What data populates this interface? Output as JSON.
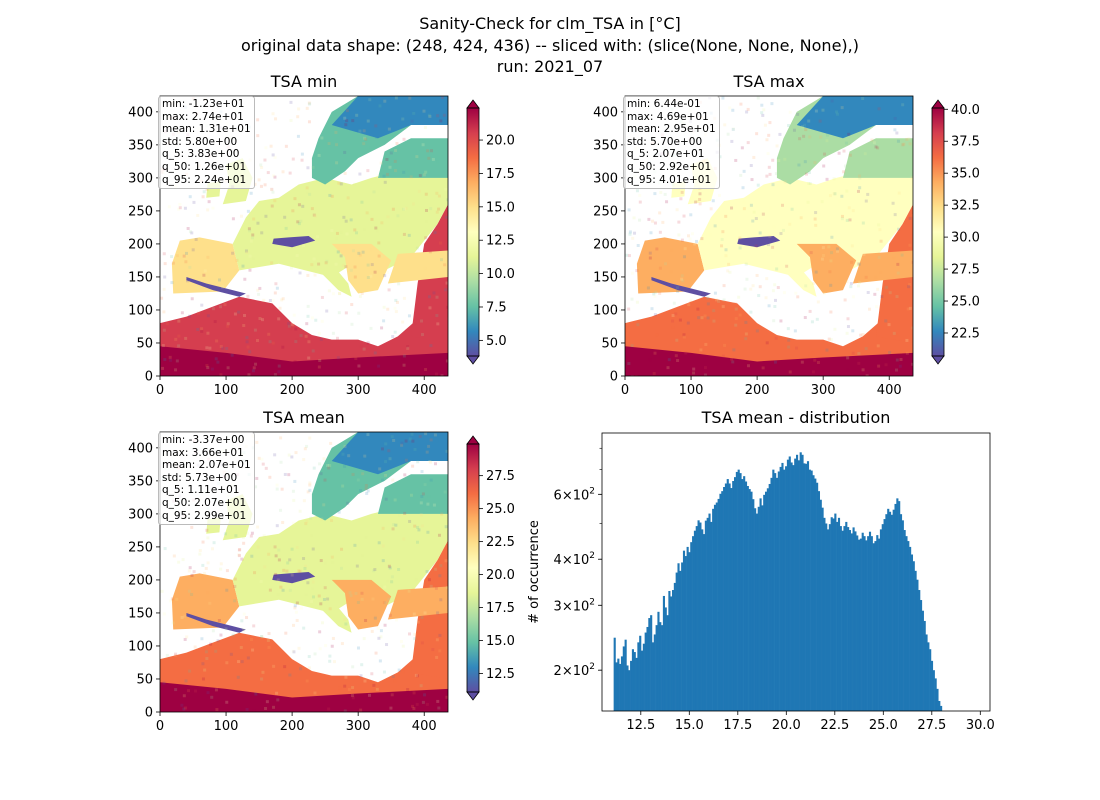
{
  "figure": {
    "title_lines": [
      "Sanity-Check for clm_TSA in [°C]",
      "original data shape: (248, 424, 436) -- sliced with: (slice(None, None, None),)",
      "run: 2021_07"
    ]
  },
  "colors": {
    "colormap": "Spectral_r",
    "bar_color": "#1f77b4",
    "stat_box_border": "#bbbbbb"
  },
  "chart_data": [
    {
      "type": "heatmap",
      "title": "TSA min",
      "x_ticks": [
        0,
        100,
        200,
        300,
        400
      ],
      "y_ticks": [
        0,
        50,
        100,
        150,
        200,
        250,
        300,
        350,
        400
      ],
      "xlim": [
        0,
        436
      ],
      "ylim": [
        0,
        424
      ],
      "colorbar": {
        "range": [
          3.83,
          22.4
        ],
        "ticks": [
          "5.0",
          "7.5",
          "10.0",
          "12.5",
          "15.0",
          "17.5",
          "20.0"
        ],
        "extend": "both"
      },
      "stats": [
        "min: -1.23e+01",
        "max: 2.74e+01",
        "mean: 1.31e+01",
        "std: 5.80e+00",
        "q_5: 3.83e+00",
        "q_50: 1.26e+01",
        "q_95: 2.24e+01"
      ]
    },
    {
      "type": "heatmap",
      "title": "TSA max",
      "x_ticks": [
        0,
        100,
        200,
        300,
        400
      ],
      "y_ticks": [
        0,
        50,
        100,
        150,
        200,
        250,
        300,
        350,
        400
      ],
      "xlim": [
        0,
        436
      ],
      "ylim": [
        0,
        424
      ],
      "colorbar": {
        "range": [
          20.7,
          40.1
        ],
        "ticks": [
          "22.5",
          "25.0",
          "27.5",
          "30.0",
          "32.5",
          "35.0",
          "37.5",
          "40.0"
        ],
        "extend": "both"
      },
      "stats": [
        "min: 6.44e-01",
        "max: 4.69e+01",
        "mean: 2.95e+01",
        "std: 5.70e+00",
        "q_5: 2.07e+01",
        "q_50: 2.92e+01",
        "q_95: 4.01e+01"
      ]
    },
    {
      "type": "heatmap",
      "title": "TSA mean",
      "x_ticks": [
        0,
        100,
        200,
        300,
        400
      ],
      "y_ticks": [
        0,
        50,
        100,
        150,
        200,
        250,
        300,
        350,
        400
      ],
      "xlim": [
        0,
        436
      ],
      "ylim": [
        0,
        424
      ],
      "colorbar": {
        "range": [
          11.1,
          29.9
        ],
        "ticks": [
          "12.5",
          "15.0",
          "17.5",
          "20.0",
          "22.5",
          "25.0",
          "27.5"
        ],
        "extend": "both"
      },
      "stats": [
        "min: -3.37e+00",
        "max: 3.66e+01",
        "mean: 2.07e+01",
        "std: 5.73e+00",
        "q_5: 1.11e+01",
        "q_50: 2.07e+01",
        "q_95: 2.99e+01"
      ]
    },
    {
      "type": "bar",
      "title": "TSA mean - distribution",
      "ylabel": "# of occurrence",
      "y_scale": "log",
      "xlim": [
        10.5,
        30.5
      ],
      "ylim": [
        155,
        880
      ],
      "x_ticks": [
        "12.5",
        "15.0",
        "17.5",
        "20.0",
        "22.5",
        "25.0",
        "27.5",
        "30.0"
      ],
      "y_tick_labels": [
        {
          "value": 200,
          "base": "2×10",
          "exp": "2"
        },
        {
          "value": 300,
          "base": "3×10",
          "exp": "2"
        },
        {
          "value": 400,
          "base": "4×10",
          "exp": "2"
        },
        {
          "value": 600,
          "base": "6×10",
          "exp": "2"
        }
      ],
      "x_start": 11.1,
      "bin_width": 0.094,
      "values": [
        245,
        210,
        215,
        208,
        218,
        232,
        242,
        206,
        200,
        212,
        228,
        224,
        216,
        238,
        248,
        226,
        236,
        253,
        262,
        277,
        282,
        238,
        250,
        265,
        288,
        270,
        265,
        318,
        296,
        282,
        328,
        317,
        330,
        345,
        368,
        390,
        372,
        392,
        422,
        408,
        432,
        418,
        445,
        462,
        478,
        492,
        510,
        503,
        482,
        468,
        509,
        518,
        532,
        505,
        548,
        562,
        570,
        583,
        602,
        612,
        628,
        642,
        660,
        642,
        624,
        652,
        668,
        690,
        700,
        685,
        660,
        672,
        650,
        632,
        620,
        610,
        582,
        550,
        532,
        555,
        585,
        560,
        598,
        610,
        623,
        640,
        665,
        700,
        685,
        665,
        692,
        712,
        730,
        700,
        715,
        745,
        760,
        732,
        720,
        750,
        768,
        742,
        780,
        768,
        728,
        726,
        738,
        700,
        696,
        676,
        662,
        645,
        612,
        580,
        552,
        518,
        500,
        482,
        498,
        520,
        516,
        532,
        505,
        518,
        492,
        478,
        492,
        505,
        489,
        480,
        470,
        488,
        476,
        464,
        452,
        455,
        472,
        462,
        450,
        462,
        475,
        462,
        442,
        448,
        465,
        455,
        482,
        498,
        514,
        530,
        548,
        538,
        528,
        545,
        565,
        585,
        575,
        530,
        510,
        480,
        462,
        448,
        432,
        412,
        395,
        372,
        352,
        330,
        310,
        290,
        272,
        250,
        238,
        228,
        212,
        200,
        190,
        178,
        165,
        160
      ]
    }
  ]
}
